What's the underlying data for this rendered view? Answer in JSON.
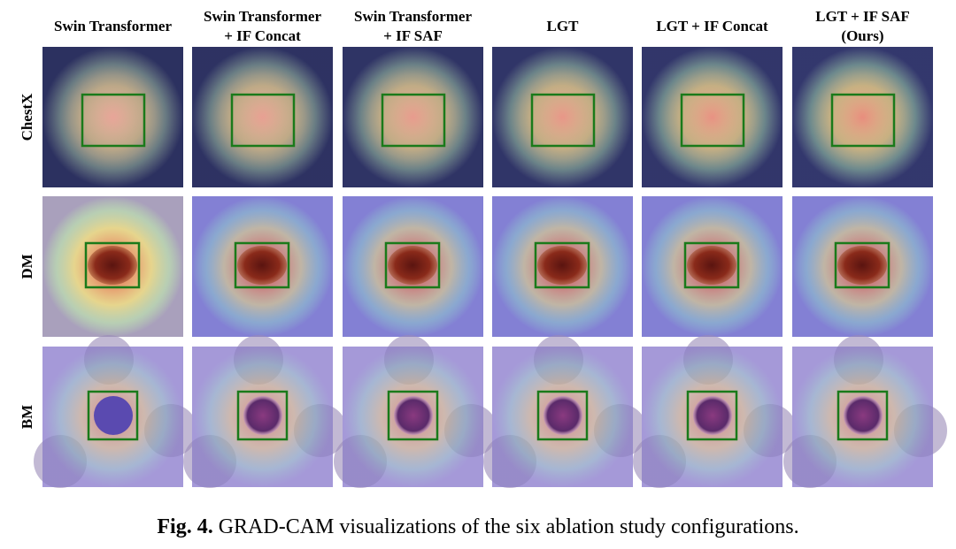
{
  "column_headers": [
    [
      "Swin Transformer"
    ],
    [
      "Swin Transformer",
      "+ IF Concat"
    ],
    [
      "Swin Transformer",
      "+ IF SAF"
    ],
    [
      "LGT"
    ],
    [
      "LGT + IF Concat"
    ],
    [
      "LGT + IF SAF",
      "(Ours)"
    ]
  ],
  "row_labels": [
    "ChestX",
    "DM",
    "BM"
  ],
  "caption": {
    "label": "Fig. 4.",
    "text": "GRAD-CAM visualizations of the six ablation study configurations."
  }
}
